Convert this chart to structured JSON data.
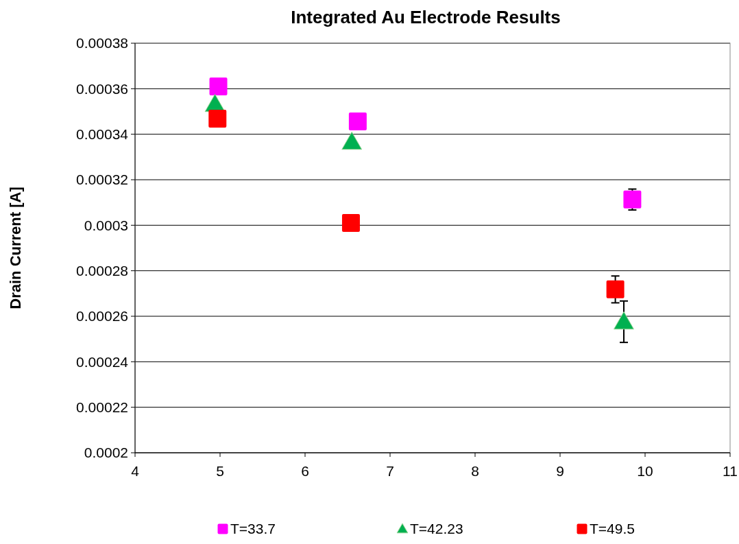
{
  "chart_data": {
    "type": "scatter",
    "title": "Integrated Au Electrode Results",
    "ylabel": "Drain Current [A]",
    "xlim": [
      4,
      11
    ],
    "xticks": [
      4,
      5,
      6,
      7,
      8,
      9,
      10,
      11
    ],
    "ylim": [
      0.0002,
      0.00038
    ],
    "yticks": [
      0.0002,
      0.00022,
      0.00024,
      0.00026,
      0.00028,
      0.0003,
      0.00032,
      0.00034,
      0.00036,
      0.00038
    ],
    "grid": "y",
    "legend": "bottom",
    "series": [
      {
        "name": "T=33.7",
        "color": "#ff00ff",
        "marker": "square",
        "x": [
          4.98,
          6.62,
          9.85
        ],
        "values": [
          0.000361,
          0.0003456,
          0.0003113
        ],
        "errors": [
          null,
          null,
          4.6e-06
        ]
      },
      {
        "name": "T=42.23",
        "color": "#00b050",
        "marker": "triangle",
        "x": [
          4.94,
          6.55,
          9.75
        ],
        "values": [
          0.0003532,
          0.0003366,
          0.0002576
        ],
        "errors": [
          null,
          null,
          9.1e-06
        ]
      },
      {
        "name": "T=49.5",
        "color": "#ff0000",
        "marker": "square",
        "x": [
          4.97,
          6.54,
          9.65
        ],
        "values": [
          0.0003468,
          0.000301,
          0.0002718
        ],
        "errors": [
          null,
          null,
          5.9e-06
        ]
      }
    ]
  }
}
